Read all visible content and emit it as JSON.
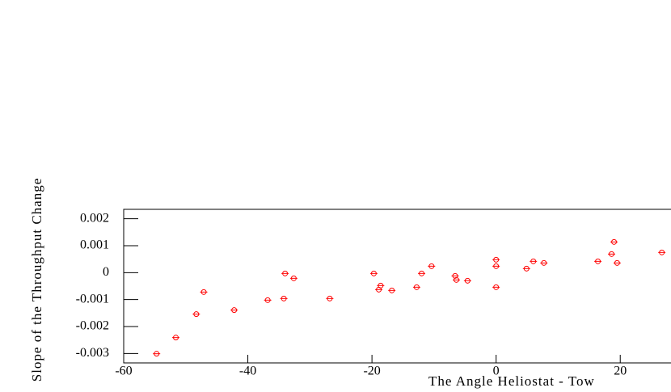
{
  "chart_data": {
    "type": "scatter",
    "x_label": "The Angle Heliostat - Tow",
    "y_label": "Slope of the Throughput Change",
    "color": "#ff0000",
    "x": [
      -54.7,
      -51.6,
      -48.3,
      -47.1,
      -42.2,
      -36.8,
      -34.2,
      -34.0,
      -32.6,
      -26.8,
      -19.7,
      -18.9,
      -18.6,
      -16.8,
      -12.8,
      -12.0,
      -10.4,
      -6.6,
      -6.4,
      -4.6,
      0.0,
      0.0,
      0.0,
      4.9,
      6.0,
      7.7,
      16.4,
      18.6,
      19.0,
      19.5,
      26.7
    ],
    "values": [
      -0.00301,
      -0.00241,
      -0.00154,
      -0.00072,
      -0.00139,
      -0.00102,
      -0.00096,
      -3e-05,
      -0.00021,
      -0.00096,
      -3e-05,
      -0.00063,
      -0.00048,
      -0.00066,
      -0.00054,
      -3e-05,
      0.00024,
      -0.00012,
      -0.00027,
      -0.0003,
      0.00048,
      0.00024,
      -0.00054,
      0.00015,
      0.00042,
      0.00036,
      0.00042,
      0.00069,
      0.00114,
      0.00036,
      0.00075
    ],
    "xlim": [
      -60,
      30
    ],
    "xticks": [
      -60,
      -40,
      -20,
      0,
      20
    ],
    "ylim": [
      -0.00335,
      0.00235
    ],
    "yticks": [
      -0.003,
      -0.002,
      -0.001,
      0,
      0.001,
      0.002
    ]
  }
}
